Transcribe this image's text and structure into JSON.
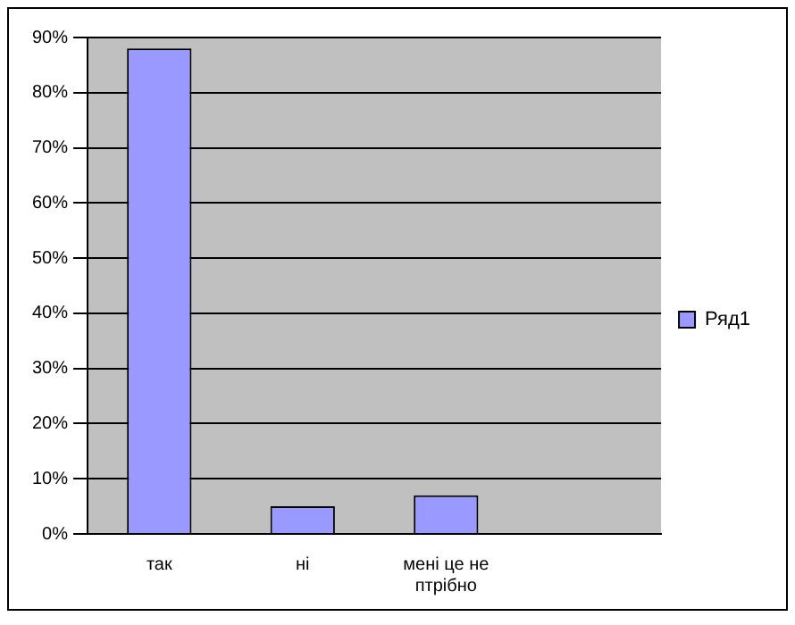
{
  "chart_data": {
    "type": "bar",
    "categories": [
      "так",
      "ні",
      "мені це не птрібно",
      null
    ],
    "series": [
      {
        "name": "Ряд1",
        "color": "#9999ff",
        "values": [
          88,
          5,
          7,
          null
        ]
      }
    ],
    "ylim": [
      0,
      90
    ],
    "yticks": [
      {
        "value": 0,
        "label": "0%"
      },
      {
        "value": 10,
        "label": "10%"
      },
      {
        "value": 20,
        "label": "20%"
      },
      {
        "value": 30,
        "label": "30%"
      },
      {
        "value": 40,
        "label": "40%"
      },
      {
        "value": 50,
        "label": "50%"
      },
      {
        "value": 60,
        "label": "60%"
      },
      {
        "value": 70,
        "label": "70%"
      },
      {
        "value": 80,
        "label": "80%"
      },
      {
        "value": 90,
        "label": "90%"
      }
    ],
    "grid": "y",
    "legend": "right"
  }
}
